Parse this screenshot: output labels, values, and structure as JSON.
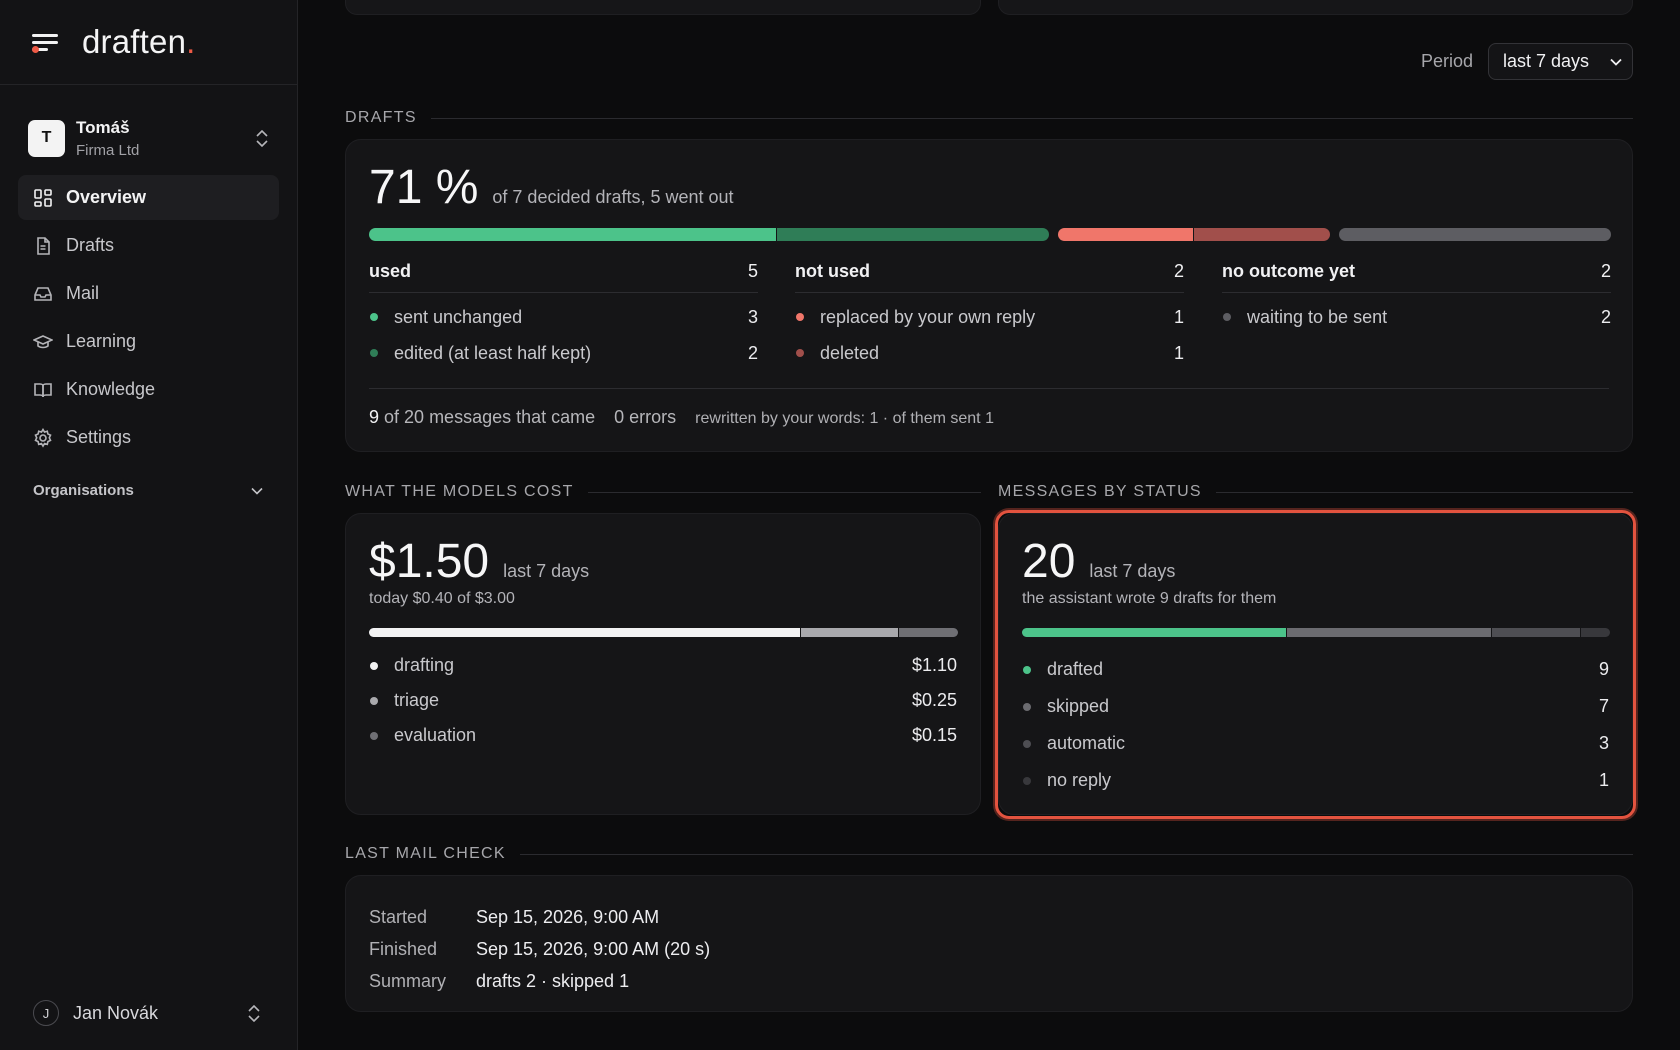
{
  "app": {
    "logo": "draften",
    "logo_dot": "."
  },
  "workspace": {
    "initial": "T",
    "name": "Tomáš",
    "org": "Firma Ltd"
  },
  "nav": [
    {
      "label": "Overview",
      "icon": "dashboard-grid-icon",
      "active": true
    },
    {
      "label": "Drafts",
      "icon": "document-icon"
    },
    {
      "label": "Mail",
      "icon": "inbox-icon"
    },
    {
      "label": "Learning",
      "icon": "graduation-cap-icon"
    },
    {
      "label": "Knowledge",
      "icon": "book-icon"
    },
    {
      "label": "Settings",
      "icon": "gear-icon"
    }
  ],
  "organisations_label": "Organisations",
  "user": {
    "initial": "J",
    "name": "Jan Novák"
  },
  "period": {
    "label": "Period",
    "value": "last 7 days"
  },
  "drafts": {
    "section_title": "DRAFTS",
    "percent": "71 %",
    "subtitle": "of 7 decided drafts, 5 went out",
    "colors": {
      "sent_unchanged": "#4cc38a",
      "edited": "#2f7d57",
      "replaced": "#f0766a",
      "deleted": "#a14f4b",
      "waiting": "#5d5d62"
    },
    "used": {
      "label": "used",
      "count": "5",
      "items": [
        {
          "label": "sent unchanged",
          "value": "3"
        },
        {
          "label": "edited (at least half kept)",
          "value": "2"
        }
      ]
    },
    "not_used": {
      "label": "not used",
      "count": "2",
      "items": [
        {
          "label": "replaced by your own reply",
          "value": "1"
        },
        {
          "label": "deleted",
          "value": "1"
        }
      ]
    },
    "no_outcome": {
      "label": "no outcome yet",
      "count": "2",
      "items": [
        {
          "label": "waiting to be sent",
          "value": "2"
        }
      ]
    },
    "footer": {
      "count": "9",
      "messages_text": "of 20 messages that came",
      "errors": "0 errors",
      "rewritten": "rewritten by your words: 1 · of them sent 1"
    }
  },
  "costs": {
    "section_title": "WHAT THE MODELS COST",
    "total": "$1.50",
    "period": "last 7 days",
    "today": "today $0.40 of $3.00",
    "items": [
      {
        "label": "drafting",
        "value": "$1.10",
        "amount": 1.1,
        "color": "#f2f2f3"
      },
      {
        "label": "triage",
        "value": "$0.25",
        "amount": 0.25,
        "color": "#a9a9ad"
      },
      {
        "label": "evaluation",
        "value": "$0.15",
        "amount": 0.15,
        "color": "#6f6f74"
      }
    ]
  },
  "status": {
    "section_title": "MESSAGES BY STATUS",
    "total": "20",
    "period": "last 7 days",
    "subtitle": "the assistant wrote 9 drafts for them",
    "items": [
      {
        "label": "drafted",
        "value": "9",
        "count": 9,
        "color": "#4cc38a"
      },
      {
        "label": "skipped",
        "value": "7",
        "count": 7,
        "color": "#6b6b70"
      },
      {
        "label": "automatic",
        "value": "3",
        "count": 3,
        "color": "#4e4e53"
      },
      {
        "label": "no reply",
        "value": "1",
        "count": 1,
        "color": "#38383c"
      }
    ]
  },
  "last_mail_check": {
    "section_title": "LAST MAIL CHECK",
    "rows": [
      {
        "key": "Started",
        "value": "Sep 15, 2026, 9:00 AM"
      },
      {
        "key": "Finished",
        "value": "Sep 15, 2026, 9:00 AM (20 s)"
      },
      {
        "key": "Summary",
        "value": "drafts 2 · skipped 1"
      }
    ]
  }
}
